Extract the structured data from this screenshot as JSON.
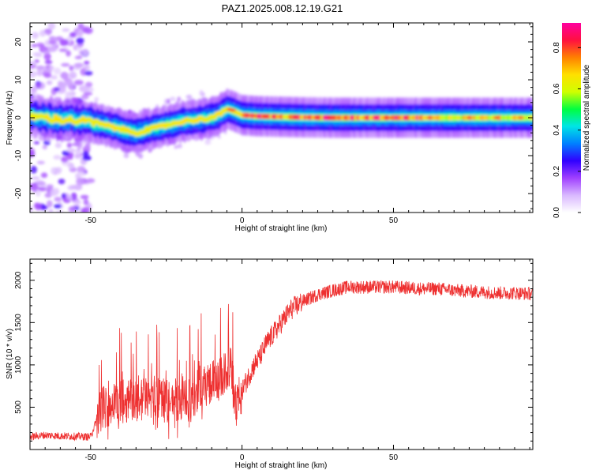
{
  "title": "PAZ1.2025.008.12.19.G21",
  "chart_data": [
    {
      "type": "heatmap",
      "xlabel": "Height of straight line (km)",
      "ylabel": "Frequency (Hz)",
      "xlim": [
        -70,
        96
      ],
      "ylim": [
        -25,
        25
      ],
      "xticks": [
        -50,
        0,
        50
      ],
      "yticks": [
        -20,
        -10,
        0,
        10,
        20
      ],
      "colorbar": {
        "label": "Normalized spectral amplitude",
        "range": [
          0.0,
          0.92
        ],
        "ticks": [
          0.0,
          0.2,
          0.4,
          0.6,
          0.8
        ],
        "colors": [
          "#ffffff",
          "#d9b8ff",
          "#a040ff",
          "#3000ff",
          "#0080ff",
          "#00e5e5",
          "#00ff40",
          "#d0ff00",
          "#ffe000",
          "#ff8000",
          "#ff1040",
          "#ff00a0"
        ]
      },
      "ridge": {
        "x": [
          -70,
          -60,
          -50,
          -45,
          -40,
          -35,
          -30,
          -25,
          -20,
          -15,
          -10,
          -7,
          -5,
          -3,
          0,
          5,
          10,
          20,
          30,
          50,
          70,
          96
        ],
        "y": [
          0.5,
          -0.5,
          -1.0,
          -2.0,
          -3.0,
          -4.0,
          -3.0,
          -2.0,
          -1.0,
          -0.5,
          0.0,
          1.0,
          2.3,
          1.8,
          0.7,
          0.4,
          0.3,
          0.1,
          0.0,
          0.0,
          0.0,
          0.0
        ]
      }
    },
    {
      "type": "line",
      "xlabel": "Height of straight line (km)",
      "ylabel": "SNR (10 * v/v)",
      "xlim": [
        -70,
        96
      ],
      "ylim": [
        0,
        2250
      ],
      "xticks": [
        -50,
        0,
        50
      ],
      "yticks": [
        500,
        1000,
        1500,
        2000
      ],
      "color": "#ee3030",
      "series": [
        {
          "x": [
            -70,
            -65,
            -60,
            -55,
            -50,
            -48,
            -46,
            -44,
            -42,
            -40,
            -38,
            -36,
            -34,
            -32,
            -30,
            -28,
            -26,
            -24,
            -22,
            -20,
            -18,
            -16,
            -14,
            -12,
            -10,
            -8,
            -6,
            -4,
            -2,
            0,
            2,
            4,
            6,
            8,
            10,
            12,
            14,
            16,
            18,
            20,
            25,
            30,
            35,
            40,
            45,
            50,
            55,
            60,
            65,
            70,
            75,
            80,
            85,
            90,
            96
          ],
          "y": [
            150,
            170,
            160,
            155,
            150,
            350,
            500,
            520,
            550,
            560,
            580,
            600,
            560,
            620,
            600,
            620,
            580,
            560,
            600,
            560,
            560,
            600,
            750,
            780,
            800,
            800,
            880,
            1000,
            500,
            700,
            850,
            1000,
            1100,
            1250,
            1350,
            1450,
            1550,
            1650,
            1700,
            1750,
            1830,
            1880,
            1920,
            1920,
            1920,
            1920,
            1910,
            1900,
            1900,
            1880,
            1870,
            1860,
            1850,
            1850,
            1840
          ]
        }
      ]
    }
  ]
}
